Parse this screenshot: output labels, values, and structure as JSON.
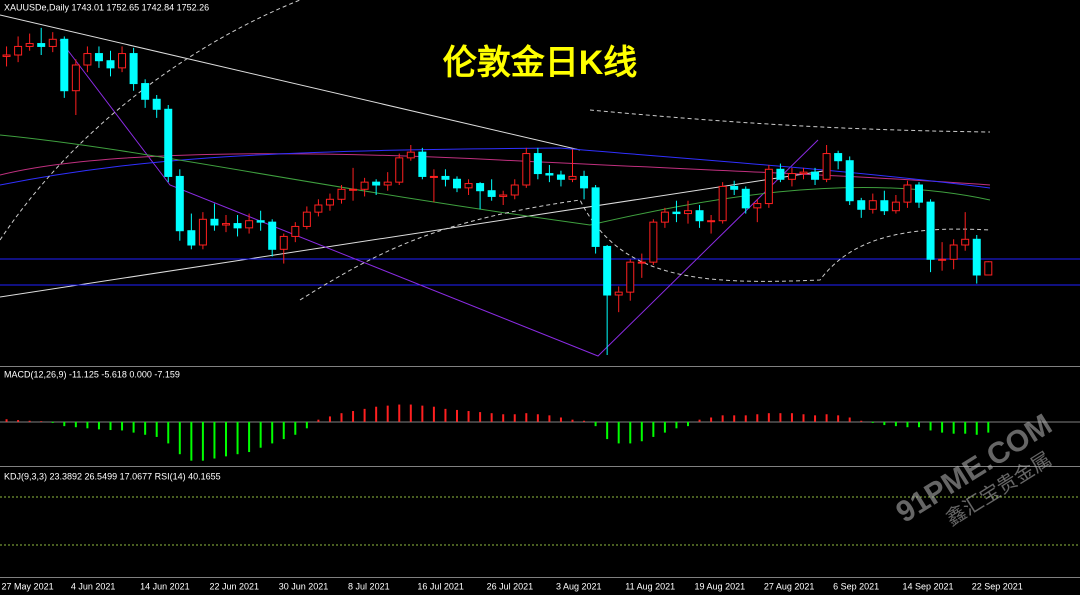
{
  "header": "XAUUSDe,Daily  1743.01 1752.65 1742.84 1752.26",
  "title": "伦敦金日K线",
  "kdj_label": "KDJ(9,3,3) 23.3892 26.5499 17.0677  RSI(14) 40.1655",
  "watermark": {
    "site": "91PME.COM",
    "brand": "鑫汇宝贵金属"
  },
  "chart_data": [
    {
      "type": "candlestick",
      "categories": [
        null,
        "27 May 2021",
        null,
        null,
        null,
        null,
        null,
        "4 Jun 2021",
        null,
        null,
        null,
        null,
        null,
        "14 Jun 2021",
        null,
        null,
        null,
        null,
        null,
        "22 Jun 2021",
        null,
        null,
        null,
        null,
        null,
        "30 Jun 2021",
        null,
        null,
        null,
        null,
        null,
        "8 Jul 2021",
        null,
        null,
        null,
        null,
        null,
        "16 Jul 2021",
        null,
        null,
        null,
        null,
        null,
        "26 Jul 2021",
        null,
        null,
        null,
        null,
        null,
        "3 Aug 2021",
        null,
        null,
        null,
        null,
        null,
        "11 Aug 2021",
        null,
        null,
        null,
        null,
        null,
        "19 Aug 2021",
        null,
        null,
        null,
        null,
        null,
        "27 Aug 2021",
        null,
        null,
        null,
        null,
        null,
        "6 Sep 2021",
        null,
        null,
        null,
        null,
        null,
        "14 Sep 2021",
        null,
        null,
        null,
        null,
        null,
        "22 Sep 2021",
        null
      ],
      "open": [
        1900,
        1896,
        1897,
        1903,
        1905,
        1903,
        1908,
        1872,
        1890,
        1898,
        1893,
        1888,
        1898,
        1877,
        1866,
        1859,
        1812,
        1774,
        1764,
        1782,
        1778,
        1779,
        1776,
        1781,
        1780,
        1761,
        1770,
        1777,
        1787,
        1792,
        1796,
        1803,
        1803,
        1808,
        1806,
        1808,
        1825,
        1829,
        1812,
        1812,
        1810,
        1804,
        1807,
        1802,
        1798,
        1799,
        1806,
        1828,
        1814,
        1813,
        1810,
        1812,
        1804,
        1763,
        1729,
        1731,
        1752,
        1752,
        1780,
        1787,
        1786,
        1788,
        1781,
        1781,
        1805,
        1803,
        1790,
        1793,
        1817,
        1810,
        1814,
        1815,
        1810,
        1828,
        1823,
        1795,
        1789,
        1795,
        1788,
        1794,
        1806,
        1794,
        1754,
        1754,
        1764,
        1768,
        1743.01
      ],
      "high": [
        1909,
        1903,
        1910,
        1912,
        1916,
        1913,
        1910,
        1894,
        1903,
        1903,
        1900,
        1903,
        1902,
        1880,
        1869,
        1862,
        1817,
        1786,
        1787,
        1793,
        1785,
        1785,
        1786,
        1788,
        1782,
        1772,
        1780,
        1791,
        1796,
        1800,
        1806,
        1818,
        1811,
        1810,
        1815,
        1828,
        1834,
        1832,
        1817,
        1817,
        1812,
        1810,
        1808,
        1810,
        1802,
        1810,
        1832,
        1832,
        1820,
        1816,
        1831,
        1816,
        1806,
        1764,
        1735,
        1754,
        1758,
        1782,
        1790,
        1795,
        1795,
        1792,
        1785,
        1808,
        1809,
        1805,
        1796,
        1820,
        1821,
        1818,
        1818,
        1818,
        1834,
        1830,
        1826,
        1797,
        1800,
        1802,
        1799,
        1809,
        1808,
        1796,
        1766,
        1768,
        1787,
        1771,
        1752.65
      ],
      "low": [
        1890,
        1889,
        1892,
        1900,
        1897,
        1899,
        1867,
        1855,
        1885,
        1888,
        1882,
        1885,
        1872,
        1860,
        1853,
        1808,
        1767,
        1761,
        1761,
        1774,
        1773,
        1770,
        1772,
        1774,
        1756,
        1751,
        1766,
        1775,
        1784,
        1788,
        1793,
        1795,
        1798,
        1799,
        1802,
        1806,
        1823,
        1810,
        1794,
        1805,
        1801,
        1799,
        1789,
        1795,
        1792,
        1796,
        1804,
        1810,
        1808,
        1805,
        1808,
        1796,
        1758,
        1687,
        1717,
        1725,
        1741,
        1750,
        1776,
        1780,
        1779,
        1776,
        1772,
        1779,
        1799,
        1786,
        1780,
        1790,
        1808,
        1805,
        1810,
        1806,
        1808,
        1817,
        1792,
        1783,
        1786,
        1785,
        1786,
        1790,
        1790,
        1745,
        1746,
        1747,
        1760,
        1737,
        1742.84
      ],
      "close": [
        1896,
        1897,
        1903,
        1905,
        1903,
        1908,
        1872,
        1890,
        1898,
        1893,
        1888,
        1898,
        1877,
        1866,
        1859,
        1812,
        1774,
        1764,
        1782,
        1778,
        1779,
        1776,
        1781,
        1780,
        1761,
        1770,
        1777,
        1787,
        1792,
        1796,
        1803,
        1803,
        1808,
        1806,
        1808,
        1825,
        1829,
        1812,
        1812,
        1810,
        1804,
        1807,
        1802,
        1798,
        1799,
        1806,
        1828,
        1814,
        1813,
        1810,
        1812,
        1804,
        1763,
        1729,
        1731,
        1752,
        1752,
        1780,
        1787,
        1786,
        1788,
        1781,
        1781,
        1805,
        1803,
        1790,
        1793,
        1817,
        1810,
        1814,
        1815,
        1810,
        1828,
        1823,
        1795,
        1789,
        1795,
        1788,
        1794,
        1806,
        1794,
        1754,
        1754,
        1764,
        1768,
        1743.01,
        1752.26
      ],
      "up_color": "#ff2020",
      "down_color": "#00ffff",
      "ylim": [
        1680,
        1925
      ]
    },
    {
      "type": "histogram-bar",
      "title": "MACD(12,26,9) -11.125 -5.618 0.000 -7.159",
      "values": [
        1.5,
        1.2,
        0.8,
        0.5,
        0.3,
        -0.5,
        -2,
        -2.5,
        -3,
        -3.5,
        -3.8,
        -4,
        -5,
        -6,
        -7,
        -10,
        -15,
        -18,
        -18,
        -17,
        -16,
        -15,
        -14,
        -12,
        -10,
        -8,
        -6,
        -3,
        1,
        2.5,
        4,
        5,
        6,
        7,
        7.5,
        8,
        8,
        7.5,
        7,
        6,
        5.5,
        5,
        4.5,
        4,
        3.5,
        3.5,
        4,
        3.5,
        3,
        2,
        1,
        0.5,
        -2,
        -8,
        -10,
        -10,
        -9,
        -7,
        -5,
        -3,
        -2,
        1,
        2,
        3,
        3,
        3,
        3.5,
        4,
        4,
        4,
        3.5,
        3,
        3.5,
        3,
        2,
        0.5,
        -0.5,
        -1.5,
        -2,
        -2.5,
        -2.5,
        -4,
        -5,
        -5.5,
        -5.5,
        -6,
        -5
      ],
      "positive_color": "#ff2020",
      "negative_color": "#00ff00",
      "ylim": [
        -20,
        24
      ]
    }
  ]
}
